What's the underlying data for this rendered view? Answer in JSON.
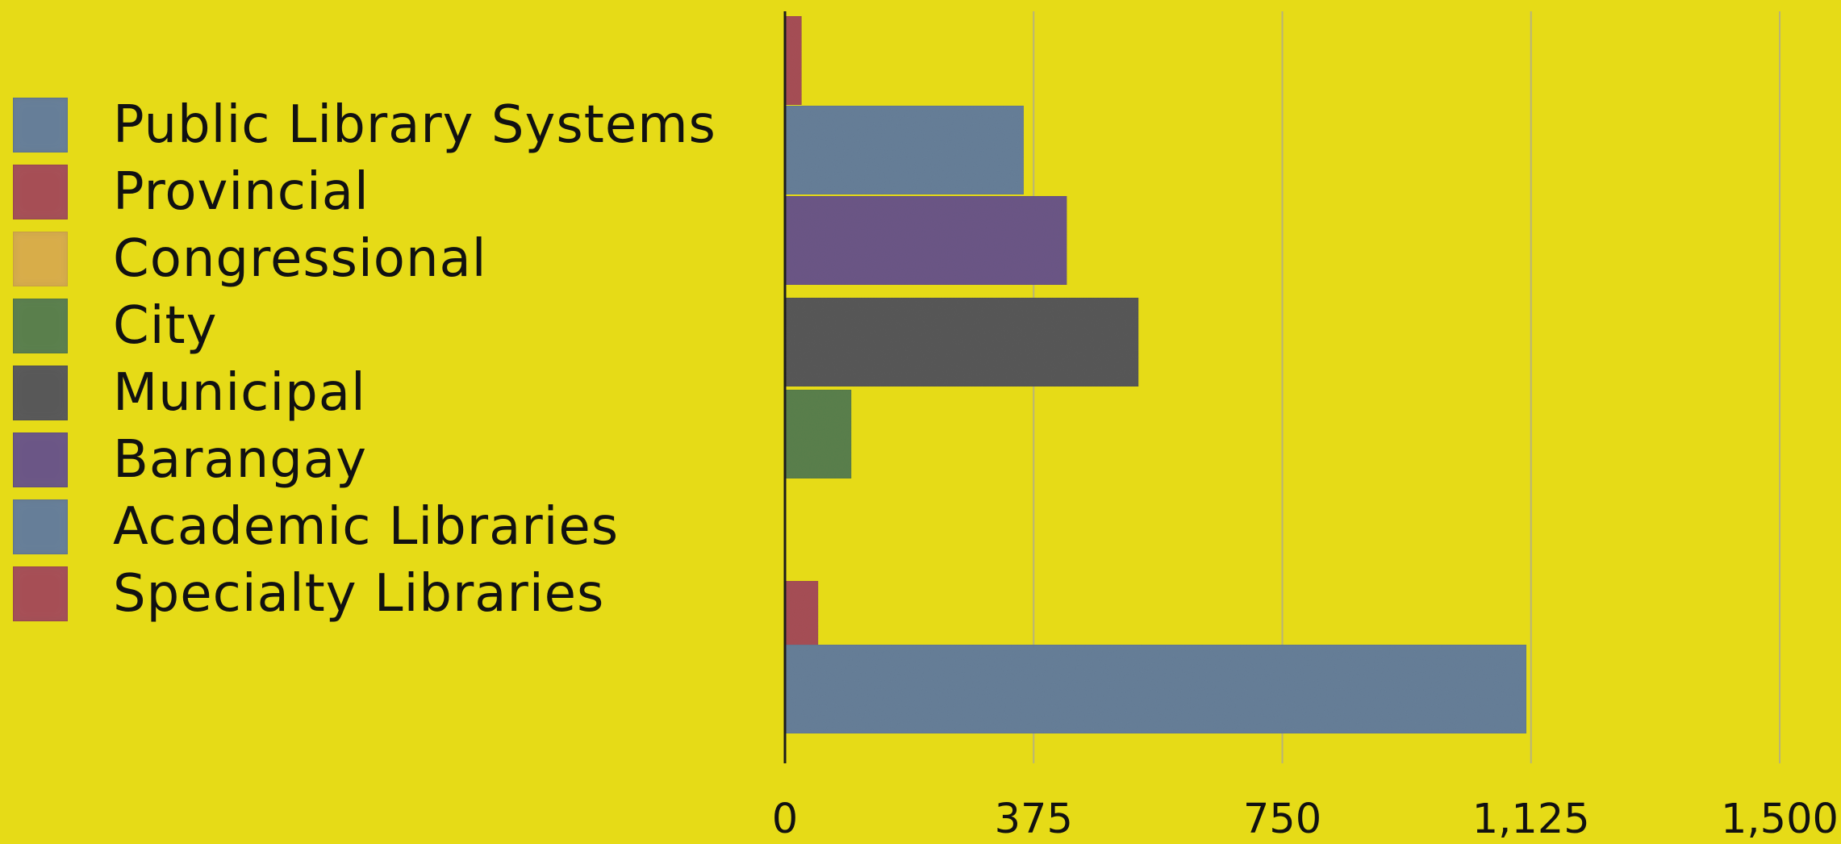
{
  "chart_data": {
    "type": "bar",
    "orientation": "horizontal",
    "title": "",
    "xlabel": "",
    "ylabel": "",
    "xlim": [
      0,
      1500
    ],
    "x_ticks": [
      "0",
      "375",
      "750",
      "1,125",
      "1,500"
    ],
    "grid": true,
    "legend_position": "left",
    "legend": [
      {
        "label": "Public Library Systems",
        "color": "#667e98"
      },
      {
        "label": "Provincial",
        "color": "#a64e55"
      },
      {
        "label": "Congressional",
        "color": "#d8ad49"
      },
      {
        "label": "City",
        "color": "#5a7f4c"
      },
      {
        "label": "Municipal",
        "color": "#585858"
      },
      {
        "label": "Barangay",
        "color": "#6b5686"
      },
      {
        "label": "Academic Libraries",
        "color": "#667e98"
      },
      {
        "label": "Specialty Libraries",
        "color": "#a64e55"
      }
    ],
    "bars": [
      {
        "series": "Provincial",
        "value": 25,
        "color": "#a64e55"
      },
      {
        "series": "Public Library Systems",
        "value": 360,
        "color": "#667e98"
      },
      {
        "series": "Barangay",
        "value": 425,
        "color": "#6b5686"
      },
      {
        "series": "Municipal",
        "value": 533,
        "color": "#585858"
      },
      {
        "series": "City",
        "value": 100,
        "color": "#5a7f4c"
      },
      {
        "series": "Congressional",
        "value": 0,
        "color": "#d8ad49"
      },
      {
        "series": "Specialty Libraries",
        "value": 50,
        "color": "#a64e55"
      },
      {
        "series": "Academic Libraries",
        "value": 1118,
        "color": "#667e98"
      }
    ]
  }
}
